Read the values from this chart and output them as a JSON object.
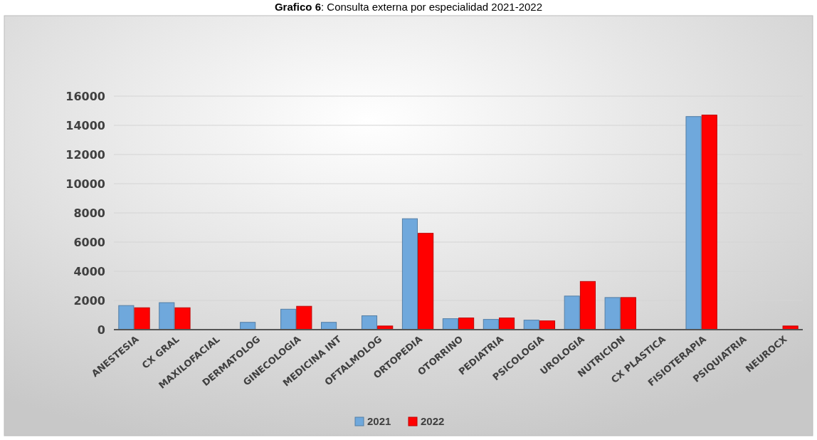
{
  "chart_data": {
    "type": "bar",
    "title": "Grafico 6: Consulta externa por especialidad 2021-2022",
    "categories": [
      "ANESTESIA",
      "CX GRAL",
      "MAXILOFACIAL",
      "DERMATOLOG",
      "GINECOLOGIA",
      "MEDICINA INT",
      "OFTALMOLOG",
      "ORTOPEDIA",
      "OTORRINO",
      "PEDIATRIA",
      "PSICOLOGIA",
      "UROLOGIA",
      "NUTRICION",
      "CX PLASTICA",
      "FISIOTERAPIA",
      "PSIQUIATRIA",
      "NEUROCX"
    ],
    "series": [
      {
        "name": "2021",
        "color": "#6fa8dc",
        "values": [
          1650,
          1850,
          0,
          500,
          1400,
          500,
          950,
          7600,
          750,
          700,
          650,
          2300,
          2200,
          0,
          14600,
          0,
          0
        ]
      },
      {
        "name": "2022",
        "color": "#ff0000",
        "values": [
          1500,
          1500,
          0,
          0,
          1600,
          0,
          250,
          6600,
          800,
          800,
          600,
          3300,
          2200,
          0,
          14700,
          0,
          250
        ]
      }
    ],
    "ylim": [
      0,
      16000
    ],
    "yticks": [
      0,
      2000,
      4000,
      6000,
      8000,
      10000,
      12000,
      14000,
      16000
    ],
    "grid": "y",
    "legend": "bottom"
  }
}
